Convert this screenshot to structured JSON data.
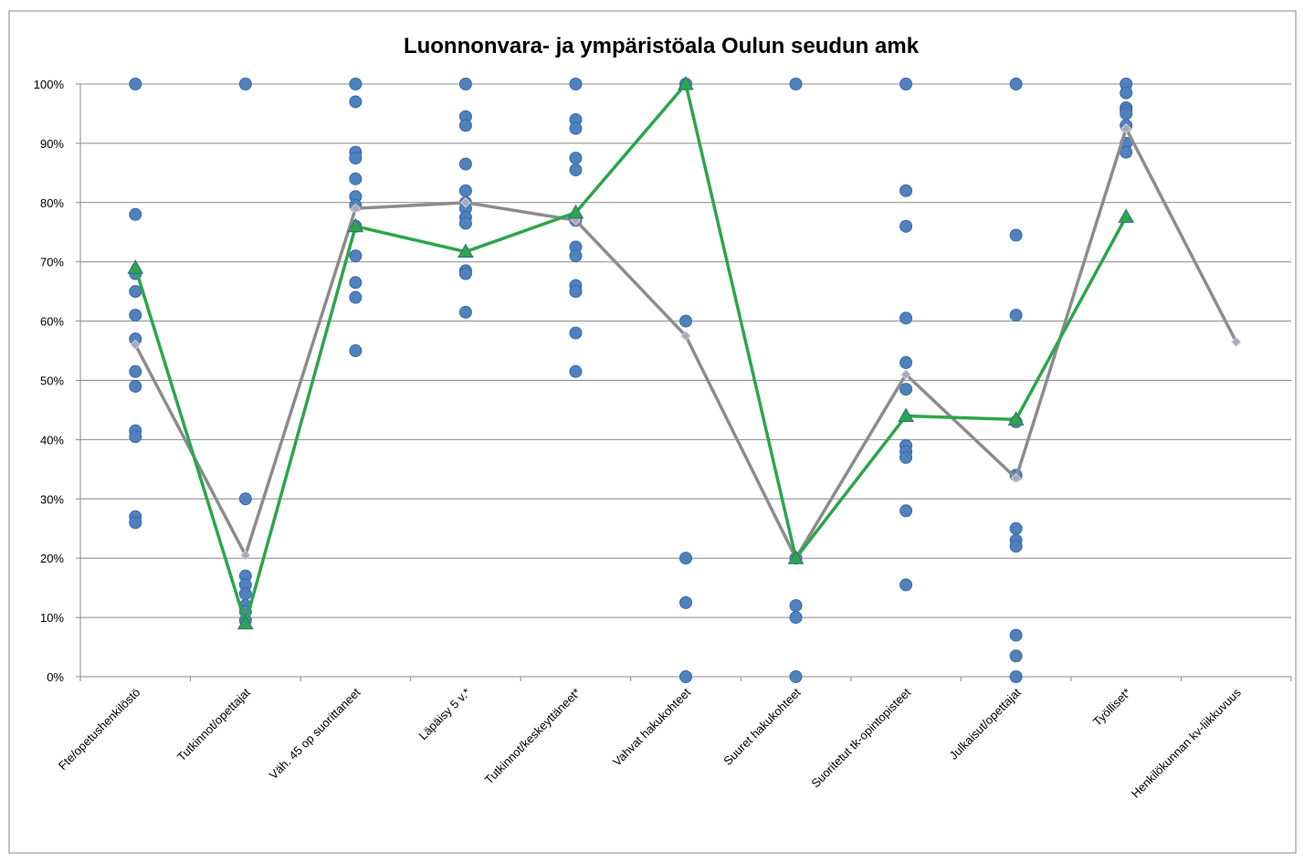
{
  "chart_data": {
    "type": "line",
    "title": "Luonnonvara- ja ympäristöala Oulun seudun amk",
    "categories": [
      "Fte/opetushenkilöstö",
      "Tutkinnot/opettajat",
      "Väh. 45 op suorittaneet",
      "Läpäisy 5 v.*",
      "Tutkinnot/keskeyttäneet*",
      "Vahvat hakukohteet",
      "Suuret hakukohteet",
      "Suoritetut tk-opintopisteet",
      "Julkaisut/opettajat",
      "Työlliset*",
      "Henkilökunnan kv-liikkuvuus"
    ],
    "ylim": [
      0,
      100
    ],
    "yticks": [
      {
        "value": 0,
        "label": "0%"
      },
      {
        "value": 10,
        "label": "10%"
      },
      {
        "value": 20,
        "label": "20%"
      },
      {
        "value": 30,
        "label": "30%"
      },
      {
        "value": 40,
        "label": "40%"
      },
      {
        "value": 50,
        "label": "50%"
      },
      {
        "value": 60,
        "label": "60%"
      },
      {
        "value": 70,
        "label": "70%"
      },
      {
        "value": 80,
        "label": "80%"
      },
      {
        "value": 90,
        "label": "90%"
      },
      {
        "value": 100,
        "label": "100%"
      }
    ],
    "grid": true,
    "dot_color": "#4f81bd",
    "dots": [
      [
        100,
        78,
        68,
        65,
        61,
        57,
        51.5,
        49,
        41.5,
        40.5,
        27,
        26
      ],
      [
        100,
        30,
        17,
        15.5,
        14,
        12,
        11,
        9.5
      ],
      [
        100,
        97,
        88.5,
        87.5,
        84,
        81,
        79.5,
        76,
        71,
        66.5,
        64,
        55
      ],
      [
        100,
        94.5,
        93,
        86.5,
        82,
        80,
        79,
        77.5,
        76.5,
        68.5,
        68,
        61.5
      ],
      [
        100,
        94,
        92.5,
        87.5,
        85.5,
        77,
        72.5,
        71,
        66,
        65,
        58,
        51.5
      ],
      [
        100,
        60,
        20,
        12.5,
        0
      ],
      [
        100,
        20,
        12,
        10,
        0
      ],
      [
        100,
        82,
        76,
        60.5,
        53,
        48.5,
        39,
        38,
        37,
        28,
        15.5
      ],
      [
        100,
        74.5,
        61,
        43,
        34,
        25,
        23,
        22,
        7,
        3.5,
        0
      ],
      [
        100,
        98.5,
        96,
        95.5,
        95,
        93,
        90,
        88.5
      ],
      []
    ],
    "series": [
      {
        "color": "#8c8c8c",
        "marker": "diamond",
        "values": [
          56,
          20.5,
          79,
          80,
          77,
          57.5,
          20,
          51,
          33.5,
          92.5,
          56.5
        ]
      },
      {
        "color": "#2ca64a",
        "marker": "triangle",
        "values": [
          69,
          9,
          76,
          71.7,
          78.3,
          100,
          20,
          44,
          43.4,
          77.6,
          null
        ]
      }
    ]
  }
}
